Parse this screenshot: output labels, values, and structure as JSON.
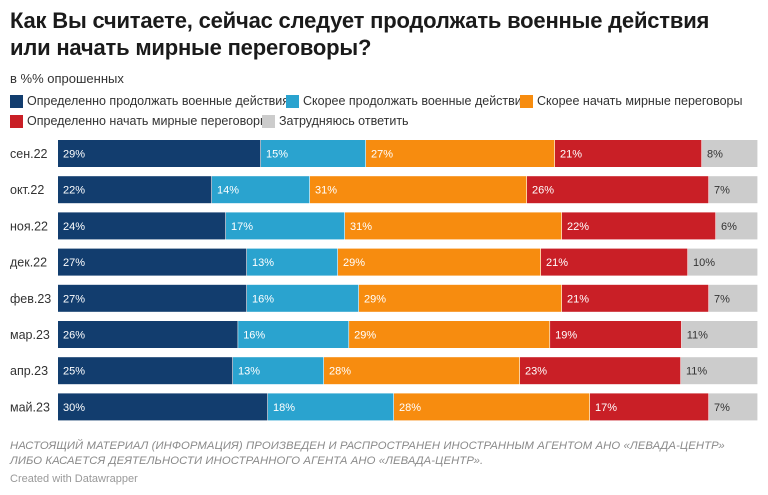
{
  "title": "Как Вы считаете, сейчас следует продолжать военные действия или начать мирные переговоры?",
  "subtitle": "в %% опрошенных",
  "note": "НАСТОЯЩИЙ МАТЕРИАЛ (ИНФОРМАЦИЯ) ПРОИЗВЕДЕН И РАСПРОСТРАНЕН ИНОСТРАННЫМ АГЕНТОМ АНО «ЛЕВАДА-ЦЕНТР» ЛИБО КАСАЕТСЯ ДЕЯТЕЛЬНОСТИ ИНОСТРАННОГО АГЕНТА АНО «ЛЕВАДА-ЦЕНТР».",
  "credit": "Created with Datawrapper",
  "chart_data": {
    "type": "bar",
    "orientation": "horizontal",
    "stacked": true,
    "unit": "%",
    "categories": [
      "сен.22",
      "окт.22",
      "ноя.22",
      "дек.22",
      "фев.23",
      "мар.23",
      "апр.23",
      "май.23"
    ],
    "series": [
      {
        "name": "Определенно продолжать военные действия",
        "color": "#123d6e",
        "label_color": "#ffffff",
        "values": [
          29,
          22,
          24,
          27,
          27,
          26,
          25,
          30
        ]
      },
      {
        "name": "Скорее продолжать военные действия",
        "color": "#2aa3cf",
        "label_color": "#ffffff",
        "values": [
          15,
          14,
          17,
          13,
          16,
          16,
          13,
          18
        ]
      },
      {
        "name": "Скорее начать мирные переговоры",
        "color": "#f78c0f",
        "label_color": "#ffffff",
        "values": [
          27,
          31,
          31,
          29,
          29,
          29,
          28,
          28
        ]
      },
      {
        "name": "Определенно начать мирные переговоры",
        "color": "#c91f26",
        "label_color": "#ffffff",
        "values": [
          21,
          26,
          22,
          21,
          21,
          19,
          23,
          17
        ]
      },
      {
        "name": "Затрудняюсь ответить",
        "color": "#cccccc",
        "label_color": "#333333",
        "values": [
          8,
          7,
          6,
          10,
          7,
          11,
          11,
          7
        ]
      }
    ],
    "xlim": [
      0,
      100
    ],
    "legend_position": "top"
  }
}
